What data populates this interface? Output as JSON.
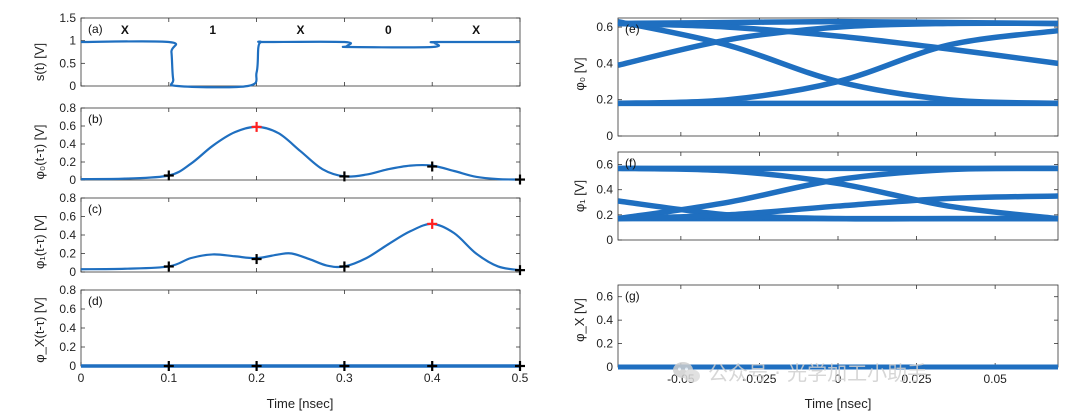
{
  "colors": {
    "line": "#1f6fc0",
    "marker_black": "#000000",
    "marker_red": "#ff2020",
    "axis": "#333333",
    "watermark": "#c8c8c8"
  },
  "watermark": {
    "text": "公众号 · 光学加工小助手",
    "icon": "wechat-icon"
  },
  "chart_data": [
    {
      "id": "a",
      "type": "line",
      "tag": "(a)",
      "ylabel": "s(t) [V]",
      "xlabel": "",
      "xlim": [
        0,
        0.5
      ],
      "ylim": [
        0,
        1.5
      ],
      "yticks": [
        0,
        0.5,
        1,
        1.5
      ],
      "ytick_labels": [
        "0",
        "0.5",
        "1",
        "1.5"
      ],
      "xticks": [
        0,
        0.1,
        0.2,
        0.3,
        0.4,
        0.5
      ],
      "region_labels": [
        {
          "x": 0.05,
          "text": "X"
        },
        {
          "x": 0.15,
          "text": "1"
        },
        {
          "x": 0.25,
          "text": "X"
        },
        {
          "x": 0.35,
          "text": "0"
        },
        {
          "x": 0.45,
          "text": "X"
        }
      ],
      "series": [
        {
          "x": [
            0,
            0.1,
            0.103,
            0.105,
            0.11,
            0.19,
            0.2,
            0.202,
            0.205,
            0.21,
            0.3,
            0.303,
            0.306,
            0.4,
            0.403,
            0.406,
            0.5
          ],
          "y": [
            0.97,
            0.97,
            0.75,
            0.15,
            0,
            0,
            0.3,
            0.85,
            0.97,
            0.97,
            0.97,
            0.88,
            0.86,
            0.86,
            0.95,
            0.97,
            0.97
          ]
        }
      ]
    },
    {
      "id": "b",
      "type": "line",
      "tag": "(b)",
      "ylabel": "φ₀(t-τ) [V]",
      "xlabel": "",
      "xlim": [
        0,
        0.5
      ],
      "ylim": [
        0,
        0.8
      ],
      "yticks": [
        0,
        0.2,
        0.4,
        0.6,
        0.8
      ],
      "ytick_labels": [
        "0",
        "0.2",
        "0.4",
        "0.6",
        "0.8"
      ],
      "xticks": [
        0,
        0.1,
        0.2,
        0.3,
        0.4,
        0.5
      ],
      "series": [
        {
          "x": [
            0,
            0.05,
            0.1,
            0.125,
            0.15,
            0.175,
            0.2,
            0.225,
            0.25,
            0.275,
            0.3,
            0.325,
            0.35,
            0.375,
            0.4,
            0.425,
            0.45,
            0.475,
            0.5
          ],
          "y": [
            0.01,
            0.015,
            0.05,
            0.18,
            0.38,
            0.53,
            0.59,
            0.52,
            0.32,
            0.12,
            0.04,
            0.06,
            0.12,
            0.16,
            0.16,
            0.1,
            0.035,
            0.01,
            0.005
          ]
        }
      ],
      "markers": [
        {
          "x": 0.1,
          "y": 0.05,
          "color": "black"
        },
        {
          "x": 0.2,
          "y": 0.59,
          "color": "red"
        },
        {
          "x": 0.3,
          "y": 0.04,
          "color": "black"
        },
        {
          "x": 0.4,
          "y": 0.15,
          "color": "black"
        },
        {
          "x": 0.5,
          "y": 0.005,
          "color": "black"
        }
      ]
    },
    {
      "id": "c",
      "type": "line",
      "tag": "(c)",
      "ylabel": "φ₁(t-τ) [V]",
      "xlabel": "",
      "xlim": [
        0,
        0.5
      ],
      "ylim": [
        0,
        0.8
      ],
      "yticks": [
        0,
        0.2,
        0.4,
        0.6,
        0.8
      ],
      "ytick_labels": [
        "0",
        "0.2",
        "0.4",
        "0.6",
        "0.8"
      ],
      "xticks": [
        0,
        0.1,
        0.2,
        0.3,
        0.4,
        0.5
      ],
      "series": [
        {
          "x": [
            0,
            0.05,
            0.1,
            0.125,
            0.15,
            0.175,
            0.2,
            0.225,
            0.24,
            0.26,
            0.28,
            0.3,
            0.325,
            0.35,
            0.375,
            0.4,
            0.425,
            0.45,
            0.475,
            0.5
          ],
          "y": [
            0.03,
            0.035,
            0.06,
            0.15,
            0.19,
            0.17,
            0.15,
            0.19,
            0.2,
            0.14,
            0.07,
            0.06,
            0.15,
            0.3,
            0.44,
            0.52,
            0.42,
            0.2,
            0.06,
            0.02
          ]
        }
      ],
      "markers": [
        {
          "x": 0.1,
          "y": 0.06,
          "color": "black"
        },
        {
          "x": 0.2,
          "y": 0.14,
          "color": "black"
        },
        {
          "x": 0.3,
          "y": 0.06,
          "color": "black"
        },
        {
          "x": 0.4,
          "y": 0.52,
          "color": "red"
        },
        {
          "x": 0.5,
          "y": 0.02,
          "color": "black"
        }
      ]
    },
    {
      "id": "d",
      "type": "line",
      "tag": "(d)",
      "ylabel": "φ_X(t-τ) [V]",
      "xlabel": "Time [nsec]",
      "xlim": [
        0,
        0.5
      ],
      "ylim": [
        0,
        0.8
      ],
      "yticks": [
        0,
        0.2,
        0.4,
        0.6,
        0.8
      ],
      "ytick_labels": [
        "0",
        "0.2",
        "0.4",
        "0.6",
        "0.8"
      ],
      "xticks": [
        0,
        0.1,
        0.2,
        0.3,
        0.4,
        0.5
      ],
      "xtick_labels": [
        "0",
        "0.1",
        "0.2",
        "0.3",
        "0.4",
        "0.5"
      ],
      "series": [
        {
          "x": [
            0,
            0.5
          ],
          "y": [
            0,
            0
          ]
        }
      ],
      "markers": [
        {
          "x": 0.1,
          "y": 0,
          "color": "black"
        },
        {
          "x": 0.2,
          "y": 0,
          "color": "black"
        },
        {
          "x": 0.3,
          "y": 0,
          "color": "black"
        },
        {
          "x": 0.4,
          "y": 0,
          "color": "black"
        },
        {
          "x": 0.5,
          "y": 0,
          "color": "black"
        }
      ]
    },
    {
      "id": "e",
      "type": "line",
      "tag": "(e)",
      "ylabel": "φ₀ [V]",
      "xlabel": "",
      "xlim": [
        -0.07,
        0.07
      ],
      "ylim": [
        0,
        0.65
      ],
      "yticks": [
        0,
        0.2,
        0.4,
        0.6
      ],
      "ytick_labels": [
        "0",
        "0.2",
        "0.4",
        "0.6"
      ],
      "xticks": [
        -0.05,
        -0.025,
        0,
        0.025,
        0.05
      ],
      "series": [
        {
          "x": [
            -0.07,
            -0.035,
            0,
            0.035,
            0.07
          ],
          "y": [
            0.62,
            0.625,
            0.63,
            0.625,
            0.62
          ]
        },
        {
          "x": [
            -0.07,
            0.07
          ],
          "y": [
            0.18,
            0.18
          ]
        },
        {
          "x": [
            -0.07,
            -0.035,
            0,
            0.035,
            0.07
          ],
          "y": [
            0.39,
            0.53,
            0.6,
            0.62,
            0.62
          ]
        },
        {
          "x": [
            -0.07,
            -0.035,
            0,
            0.035,
            0.07
          ],
          "y": [
            0.63,
            0.5,
            0.3,
            0.2,
            0.18
          ]
        },
        {
          "x": [
            -0.07,
            -0.035,
            0,
            0.035,
            0.07
          ],
          "y": [
            0.18,
            0.2,
            0.3,
            0.5,
            0.58
          ]
        },
        {
          "x": [
            -0.07,
            -0.035,
            0,
            0.035,
            0.07
          ],
          "y": [
            0.62,
            0.6,
            0.55,
            0.48,
            0.4
          ]
        }
      ]
    },
    {
      "id": "f",
      "type": "line",
      "tag": "(f)",
      "ylabel": "φ₁ [V]",
      "xlabel": "",
      "xlim": [
        -0.07,
        0.07
      ],
      "ylim": [
        0,
        0.7
      ],
      "yticks": [
        0,
        0.2,
        0.4,
        0.6
      ],
      "ytick_labels": [
        "0",
        "0.2",
        "0.4",
        "0.6"
      ],
      "xticks": [
        -0.05,
        -0.025,
        0,
        0.025,
        0.05
      ],
      "series": [
        {
          "x": [
            -0.07,
            0.07
          ],
          "y": [
            0.57,
            0.57
          ]
        },
        {
          "x": [
            -0.07,
            0.07
          ],
          "y": [
            0.17,
            0.17
          ]
        },
        {
          "x": [
            -0.07,
            -0.035,
            0,
            0.035,
            0.07
          ],
          "y": [
            0.31,
            0.2,
            0.17,
            0.17,
            0.17
          ]
        },
        {
          "x": [
            -0.07,
            -0.035,
            0,
            0.035,
            0.07
          ],
          "y": [
            0.17,
            0.3,
            0.48,
            0.56,
            0.57
          ]
        },
        {
          "x": [
            -0.07,
            -0.035,
            0,
            0.035,
            0.07
          ],
          "y": [
            0.57,
            0.55,
            0.45,
            0.27,
            0.17
          ]
        },
        {
          "x": [
            -0.07,
            -0.035,
            0,
            0.035,
            0.07
          ],
          "y": [
            0.17,
            0.2,
            0.27,
            0.33,
            0.35
          ]
        }
      ]
    },
    {
      "id": "g",
      "type": "line",
      "tag": "(g)",
      "ylabel": "φ_X [V]",
      "xlabel": "Time [nsec]",
      "xlim": [
        -0.07,
        0.07
      ],
      "ylim": [
        0,
        0.7
      ],
      "yticks": [
        0,
        0.2,
        0.4,
        0.6
      ],
      "ytick_labels": [
        "0",
        "0.2",
        "0.4",
        "0.6"
      ],
      "xticks": [
        -0.05,
        -0.025,
        0,
        0.025,
        0.05
      ],
      "xtick_labels": [
        "-0.05",
        "-0.025",
        "0",
        "0.025",
        "0.05"
      ],
      "series": [
        {
          "x": [
            -0.07,
            0.07
          ],
          "y": [
            0,
            0
          ]
        }
      ]
    }
  ]
}
